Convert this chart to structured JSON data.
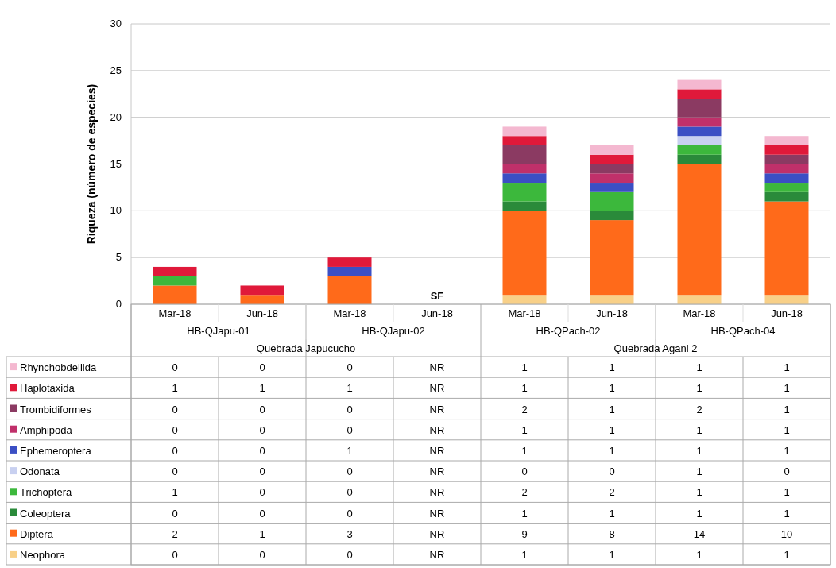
{
  "chart_data": {
    "type": "bar",
    "stacked": true,
    "ylabel": "Riqueza (número de especies)",
    "categories": [
      "Mar-18",
      "Jun-18",
      "Mar-18",
      "Jun-18",
      "Mar-18",
      "Jun-18",
      "Mar-18",
      "Jun-18"
    ],
    "series": [
      {
        "name": "Neophora",
        "color": "#f8d088",
        "values": [
          0,
          0,
          0,
          null,
          1,
          1,
          1,
          1
        ],
        "value_labels": [
          "0",
          "0",
          "0",
          "NR",
          "1",
          "1",
          "1",
          "1"
        ]
      },
      {
        "name": "Diptera",
        "color": "#ff6a1a",
        "values": [
          2,
          1,
          3,
          null,
          9,
          8,
          14,
          10
        ],
        "value_labels": [
          "2",
          "1",
          "3",
          "NR",
          "9",
          "8",
          "14",
          "10"
        ]
      },
      {
        "name": "Coleoptera",
        "color": "#2a8a3a",
        "values": [
          0,
          0,
          0,
          null,
          1,
          1,
          1,
          1
        ],
        "value_labels": [
          "0",
          "0",
          "0",
          "NR",
          "1",
          "1",
          "1",
          "1"
        ]
      },
      {
        "name": "Trichoptera",
        "color": "#3cb83c",
        "values": [
          1,
          0,
          0,
          null,
          2,
          2,
          1,
          1
        ],
        "value_labels": [
          "1",
          "0",
          "0",
          "NR",
          "2",
          "2",
          "1",
          "1"
        ]
      },
      {
        "name": "Odonata",
        "color": "#c8d0f0",
        "values": [
          0,
          0,
          0,
          null,
          0,
          0,
          1,
          0
        ],
        "value_labels": [
          "0",
          "0",
          "0",
          "NR",
          "0",
          "0",
          "1",
          "0"
        ]
      },
      {
        "name": "Ephemeroptera",
        "color": "#3b4fc4",
        "values": [
          0,
          0,
          1,
          null,
          1,
          1,
          1,
          1
        ],
        "value_labels": [
          "0",
          "0",
          "1",
          "NR",
          "1",
          "1",
          "1",
          "1"
        ]
      },
      {
        "name": "Amphipoda",
        "color": "#c0306a",
        "values": [
          0,
          0,
          0,
          null,
          1,
          1,
          1,
          1
        ],
        "value_labels": [
          "0",
          "0",
          "0",
          "NR",
          "1",
          "1",
          "1",
          "1"
        ]
      },
      {
        "name": "Trombidiformes",
        "color": "#8b3a62",
        "values": [
          0,
          0,
          0,
          null,
          2,
          1,
          2,
          1
        ],
        "value_labels": [
          "0",
          "0",
          "0",
          "NR",
          "2",
          "1",
          "2",
          "1"
        ]
      },
      {
        "name": "Haplotaxida",
        "color": "#e0193a",
        "values": [
          1,
          1,
          1,
          null,
          1,
          1,
          1,
          1
        ],
        "value_labels": [
          "1",
          "1",
          "1",
          "NR",
          "1",
          "1",
          "1",
          "1"
        ]
      },
      {
        "name": "Rhynchobdellida",
        "color": "#f4b8d0",
        "values": [
          0,
          0,
          0,
          null,
          1,
          1,
          1,
          1
        ],
        "value_labels": [
          "0",
          "0",
          "0",
          "NR",
          "1",
          "1",
          "1",
          "1"
        ]
      }
    ],
    "ylim": [
      0,
      30
    ],
    "yticks": [
      0,
      5,
      10,
      15,
      20,
      25,
      30
    ],
    "grid": "y",
    "legend": "bottom left",
    "annotations": [
      "HB-QJapu-01",
      "HB-QJapu-02",
      "HB-QPach-02",
      "HB-QPach-04",
      "Quebrada Japucucho",
      "Quebrada Agani 2",
      "SF"
    ]
  }
}
